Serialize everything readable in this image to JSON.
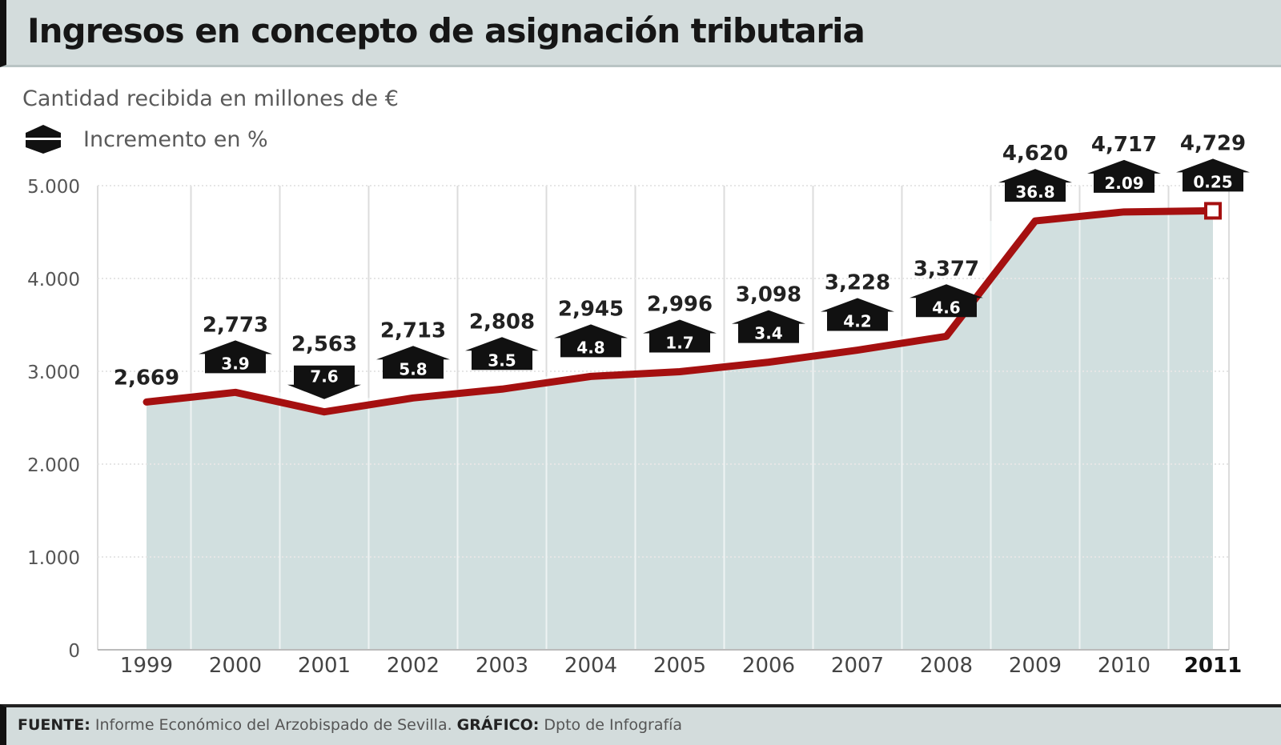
{
  "header": {
    "title": "Ingresos en concepto de asignación tributaria"
  },
  "subtitle": "Cantidad recibida en millones de €",
  "legend": {
    "label": "Incremento en %"
  },
  "footer": {
    "source_label": "FUENTE:",
    "source_text": " Informe Económico del Arzobispado de Sevilla. ",
    "graphic_label": "GRÁFICO:",
    "graphic_text": " Dpto de Infografía"
  },
  "colors": {
    "line": "#a51010",
    "area": "#d1dfdf",
    "header_bg": "#d3dcdc",
    "badge": "#111111"
  },
  "chart_data": {
    "type": "line",
    "x": [
      "1999",
      "2000",
      "2001",
      "2002",
      "2003",
      "2004",
      "2005",
      "2006",
      "2007",
      "2008",
      "2009",
      "2010",
      "2011"
    ],
    "values": [
      2669,
      2773,
      2563,
      2713,
      2808,
      2945,
      2996,
      3098,
      3228,
      3377,
      4620,
      4717,
      4729
    ],
    "value_labels": [
      "2,669",
      "2,773",
      "2,563",
      "2,713",
      "2,808",
      "2,945",
      "2,996",
      "3,098",
      "3,228",
      "3,377",
      "4,620",
      "4,717",
      "4,729"
    ],
    "increments": [
      "",
      "3.9",
      "7.6",
      "5.8",
      "3.5",
      "4.8",
      "1.7",
      "3.4",
      "4.2",
      "4.6",
      "36.8",
      "2.09",
      "0.25"
    ],
    "increment_direction": [
      "",
      "up",
      "down",
      "up",
      "up",
      "up",
      "up",
      "up",
      "up",
      "up",
      "up",
      "up",
      "up"
    ],
    "y_ticks": [
      "0",
      "1.000",
      "2.000",
      "3.000",
      "4.000",
      "5.000"
    ],
    "ylim": [
      0,
      5000
    ],
    "grid": true,
    "area_fill": true,
    "highlight_last": true
  }
}
